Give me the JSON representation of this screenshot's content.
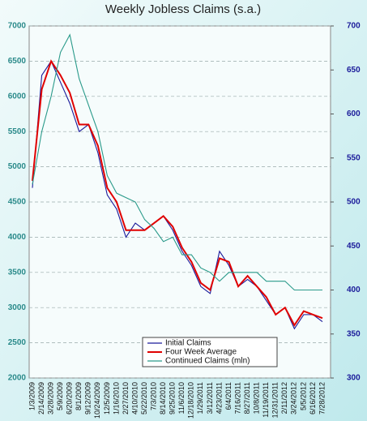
{
  "chart_data": {
    "type": "line",
    "title": "Weekly Jobless Claims (s.a.)",
    "categories": [
      "1/3/2009",
      "2/14/2009",
      "3/28/2009",
      "5/9/2009",
      "6/20/2009",
      "8/1/2009",
      "9/12/2009",
      "10/24/2009",
      "12/5/2009",
      "1/16/2010",
      "2/27/2010",
      "4/10/2010",
      "5/22/2010",
      "7/3/2010",
      "8/14/2010",
      "9/25/2010",
      "11/6/2010",
      "12/18/2010",
      "1/29/2011",
      "3/12/2011",
      "4/23/2011",
      "6/4/2011",
      "7/16/2011",
      "8/27/2011",
      "10/8/2011",
      "11/19/2011",
      "12/31/2011",
      "2/11/2012",
      "3/24/2012",
      "5/5/2012",
      "6/16/2012",
      "7/28/2012"
    ],
    "series": [
      {
        "name": "Initial Claims",
        "color": "#1a1a9a",
        "values": [
          4700,
          6300,
          6500,
          6200,
          5900,
          5500,
          5600,
          5200,
          4600,
          4400,
          4000,
          4200,
          4100,
          4200,
          4300,
          4100,
          3800,
          3600,
          3300,
          3200,
          3800,
          3600,
          3300,
          3400,
          3300,
          3100,
          2900,
          3000,
          2700,
          2900,
          2900,
          2800
        ]
      },
      {
        "name": "Four Week Average",
        "color": "#e00000",
        "values": [
          4800,
          6100,
          6500,
          6300,
          6050,
          5600,
          5600,
          5300,
          4700,
          4500,
          4100,
          4100,
          4100,
          4200,
          4300,
          4150,
          3850,
          3650,
          3350,
          3250,
          3700,
          3650,
          3300,
          3450,
          3300,
          3150,
          2900,
          3000,
          2750,
          2950,
          2900,
          2850
        ]
      },
      {
        "name": "Continued Claims (mln)",
        "color": "#2a9a8a",
        "axis": "y2",
        "values": [
          520,
          580,
          620,
          670,
          690,
          640,
          610,
          580,
          530,
          510,
          505,
          500,
          480,
          470,
          455,
          460,
          440,
          440,
          425,
          420,
          410,
          420,
          420,
          420,
          420,
          410,
          410,
          410,
          400,
          400,
          400,
          400
        ]
      }
    ],
    "ylim": [
      2000,
      7000
    ],
    "yticks": [
      2000,
      2500,
      3000,
      3500,
      4000,
      4500,
      5000,
      5500,
      6000,
      6500,
      7000
    ],
    "y2lim": [
      300,
      700
    ],
    "y2ticks": [
      300,
      350,
      400,
      450,
      500,
      550,
      600,
      650,
      700
    ],
    "grid": true,
    "legend": "bottom"
  }
}
